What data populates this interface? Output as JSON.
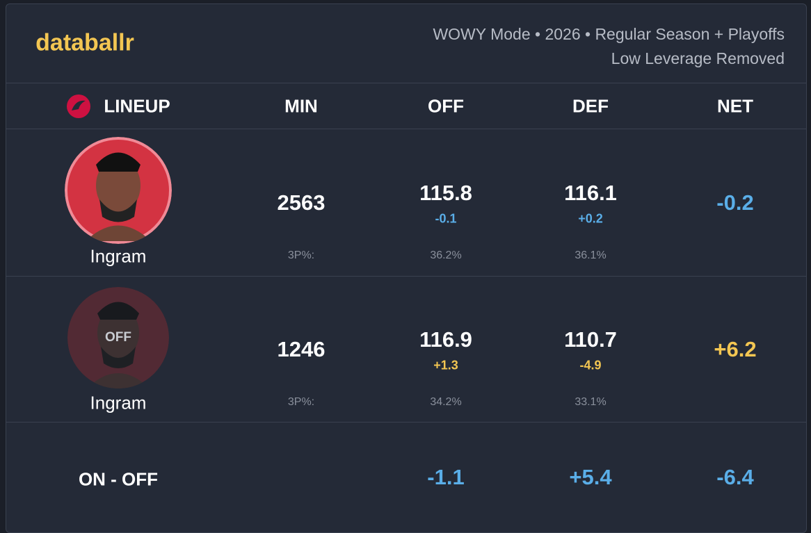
{
  "header": {
    "logo": "databallr",
    "subtitle_lines": [
      "WOWY Mode • 2026 • Regular Season + Playoffs",
      "Low Leverage Removed"
    ]
  },
  "table": {
    "columns": [
      "LINEUP",
      "MIN",
      "OFF",
      "DEF",
      "NET"
    ],
    "rows": [
      {
        "player": "Ingram",
        "min": "2563",
        "off": "115.8",
        "off_diff": "-0.1",
        "def": "116.1",
        "def_diff": "+0.2",
        "net": "-0.2",
        "threep_label": "3P%:",
        "off_3p": "36.2%",
        "def_3p": "36.1%"
      },
      {
        "player": "Ingram",
        "badge": "OFF",
        "min": "1246",
        "off": "116.9",
        "off_diff": "+1.3",
        "def": "110.7",
        "def_diff": "-4.9",
        "net": "+6.2",
        "threep_label": "3P%:",
        "off_3p": "34.2%",
        "def_3p": "33.1%"
      }
    ]
  },
  "summary": {
    "label": "ON - OFF",
    "off": "-1.1",
    "def": "+5.4",
    "net": "-6.4"
  }
}
